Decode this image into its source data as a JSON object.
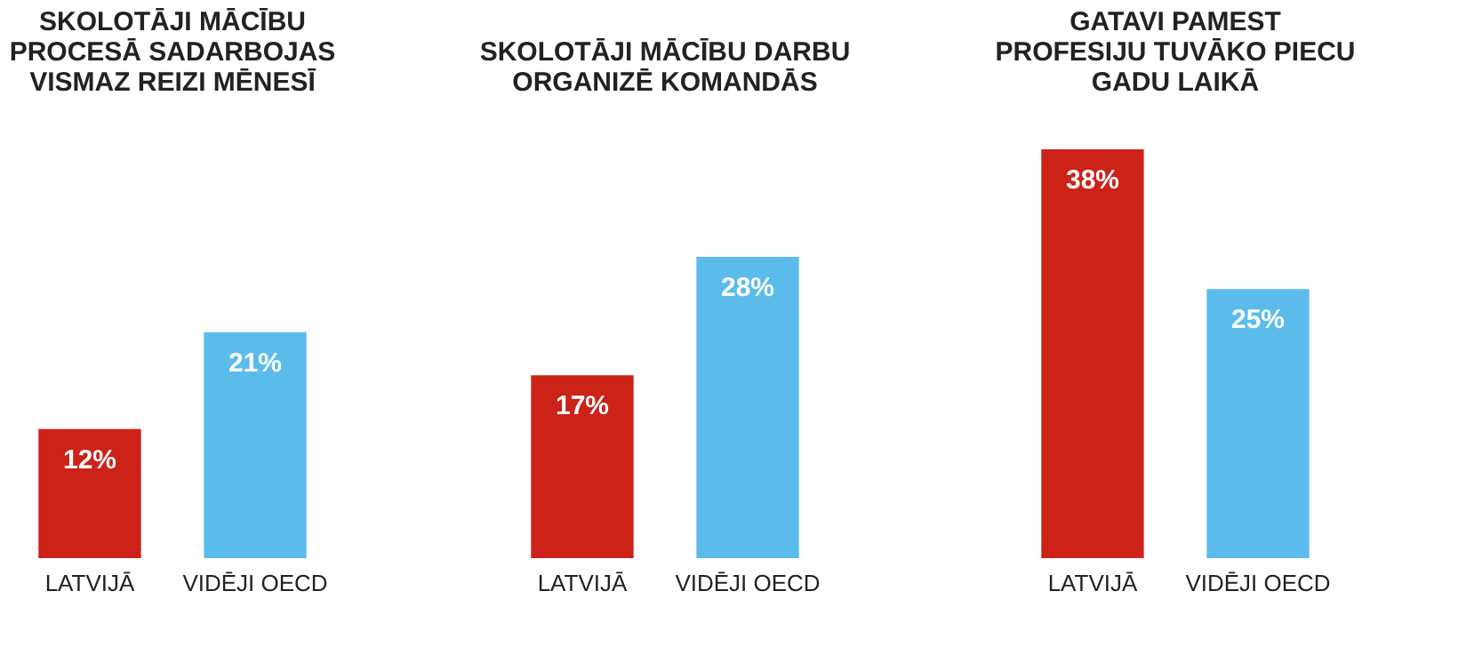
{
  "chart_data": [
    {
      "type": "bar",
      "title": "SKOLOTĀJI MĀCĪBU PROCESĀ SADARBOJAS VISMAZ REIZI MĒNESĪ",
      "categories": [
        "LATVIJĀ",
        "VIDĒJI OECD"
      ],
      "values": [
        12,
        21
      ],
      "colors": [
        "#cc2218",
        "#5bbcec"
      ],
      "value_labels": [
        "12%",
        "21%"
      ]
    },
    {
      "type": "bar",
      "title": "SKOLOTĀJI MĀCĪBU DARBU ORGANIZĒ KOMANDĀS",
      "categories": [
        "LATVIJĀ",
        "VIDĒJI OECD"
      ],
      "values": [
        17,
        28
      ],
      "colors": [
        "#cc2218",
        "#5bbcec"
      ],
      "value_labels": [
        "17%",
        "28%"
      ]
    },
    {
      "type": "bar",
      "title": "GATAVI PAMEST PROFESIJU TUVĀKO PIECU GADU LAIKĀ",
      "categories": [
        "LATVIJĀ",
        "VIDĒJI OECD"
      ],
      "values": [
        38,
        25
      ],
      "colors": [
        "#cc2218",
        "#5bbcec"
      ],
      "value_labels": [
        "38%",
        "25%"
      ]
    }
  ]
}
